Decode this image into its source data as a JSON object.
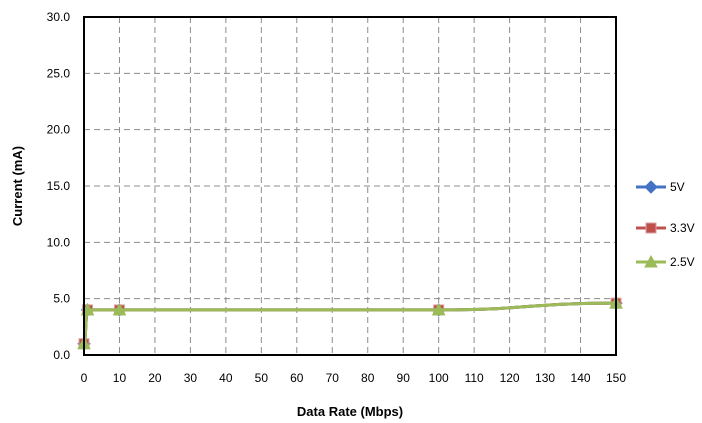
{
  "chart_data": {
    "type": "line",
    "xlabel": "Data Rate (Mbps)",
    "ylabel": "Current (mA)",
    "xlim": [
      0,
      150
    ],
    "ylim": [
      0,
      30
    ],
    "xticks": [
      0,
      10,
      20,
      30,
      40,
      50,
      60,
      70,
      80,
      90,
      100,
      110,
      120,
      130,
      140,
      150
    ],
    "xtick_labels": [
      "0",
      "10",
      "20",
      "30",
      "40",
      "50",
      "60",
      "70",
      "80",
      "90",
      "100",
      "110",
      "120",
      "130",
      "140",
      "150"
    ],
    "yticks": [
      0,
      5,
      10,
      15,
      20,
      25,
      30
    ],
    "ytick_labels": [
      "0.0",
      "5.0",
      "10.0",
      "15.0",
      "20.0",
      "25.0",
      "30.0"
    ],
    "grid": true,
    "legend_position": "right",
    "series": [
      {
        "name": "5V",
        "color": "#4472C4",
        "marker": "diamond",
        "x": [
          0,
          1,
          10,
          100,
          150
        ],
        "y": [
          1.0,
          4.0,
          4.0,
          4.0,
          4.6
        ]
      },
      {
        "name": "3.3V",
        "color": "#C0504D",
        "marker": "square",
        "x": [
          0,
          1,
          10,
          100,
          150
        ],
        "y": [
          1.0,
          4.0,
          4.0,
          4.0,
          4.6
        ]
      },
      {
        "name": "2.5V",
        "color": "#9BBB59",
        "marker": "triangle",
        "x": [
          0,
          1,
          10,
          100,
          150
        ],
        "y": [
          1.0,
          4.0,
          4.0,
          4.0,
          4.6
        ]
      }
    ]
  }
}
